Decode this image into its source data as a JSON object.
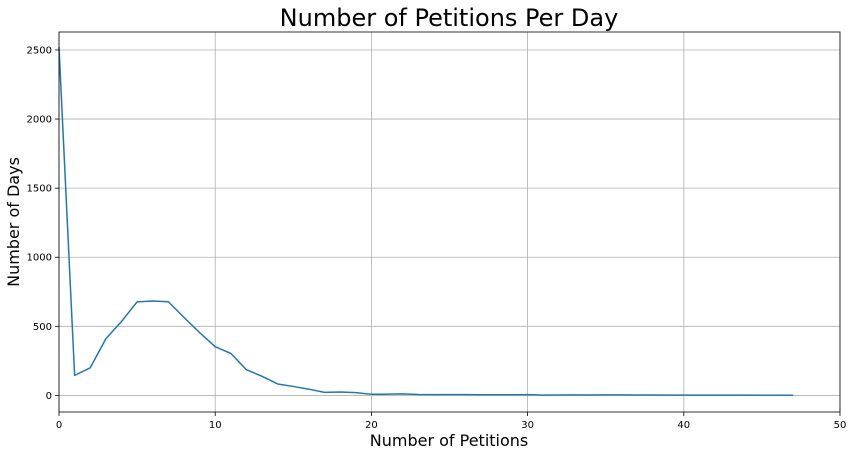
{
  "chart_data": {
    "type": "line",
    "title": "Number of Petitions Per Day",
    "xlabel": "Number of Petitions",
    "ylabel": "Number of Days",
    "xlim": [
      0,
      50
    ],
    "ylim": [
      -120,
      2630
    ],
    "xticks": [
      0,
      10,
      20,
      30,
      40,
      50
    ],
    "yticks": [
      0,
      500,
      1000,
      1500,
      2000,
      2500
    ],
    "grid": true,
    "line_color": "#1f77b4",
    "series": [
      {
        "x": [
          0,
          1,
          2,
          3,
          4,
          5,
          6,
          7,
          8,
          9,
          10,
          11,
          12,
          13,
          14,
          15,
          16,
          17,
          18,
          19,
          20,
          21,
          22,
          23,
          24,
          25,
          26,
          27,
          28,
          29,
          30,
          31,
          32,
          33,
          34,
          35,
          36,
          37,
          38,
          39,
          40,
          41,
          42,
          43,
          44,
          45,
          46,
          47
        ],
        "values": [
          2520,
          145,
          200,
          410,
          535,
          677,
          683,
          678,
          565,
          455,
          353,
          304,
          186,
          138,
          83,
          65,
          45,
          22,
          25,
          20,
          8,
          9,
          11,
          7,
          6,
          6,
          6,
          5,
          5,
          5,
          6,
          2,
          3,
          4,
          3,
          4,
          4,
          3,
          3,
          2,
          2,
          2,
          2,
          2,
          2,
          1,
          1,
          1
        ]
      }
    ]
  }
}
